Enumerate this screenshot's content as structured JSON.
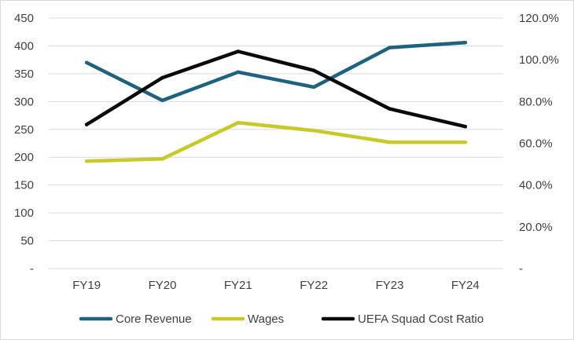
{
  "chart_data": {
    "type": "line",
    "categories": [
      "FY19",
      "FY20",
      "FY21",
      "FY22",
      "FY23",
      "FY24"
    ],
    "left_axis": {
      "ylim": [
        0,
        450
      ],
      "ticks": [
        0,
        50,
        100,
        150,
        200,
        250,
        300,
        350,
        400,
        450
      ],
      "tick_labels": [
        "-",
        "50",
        "100",
        "150",
        "200",
        "250",
        "300",
        "350",
        "400",
        "450"
      ]
    },
    "right_axis": {
      "ylim": [
        0,
        1.2
      ],
      "ticks": [
        0,
        0.2,
        0.4,
        0.6,
        0.8,
        1.0,
        1.2
      ],
      "tick_labels": [
        "-",
        "20.0%",
        "40.0%",
        "60.0%",
        "80.0%",
        "100.0%",
        "120.0%"
      ]
    },
    "series": [
      {
        "name": "Core Revenue",
        "axis": "left",
        "color": "#1f6280",
        "values": [
          370,
          302,
          353,
          326,
          397,
          406
        ]
      },
      {
        "name": "Wages",
        "axis": "left",
        "color": "#c8c82a",
        "values": [
          193,
          197,
          262,
          248,
          227,
          227
        ]
      },
      {
        "name": "UEFA Squad Cost Ratio",
        "axis": "right",
        "color": "#0a0a0a",
        "values": [
          0.69,
          0.914,
          1.04,
          0.949,
          0.765,
          0.68
        ]
      }
    ],
    "grid": true,
    "legend_position": "bottom"
  }
}
